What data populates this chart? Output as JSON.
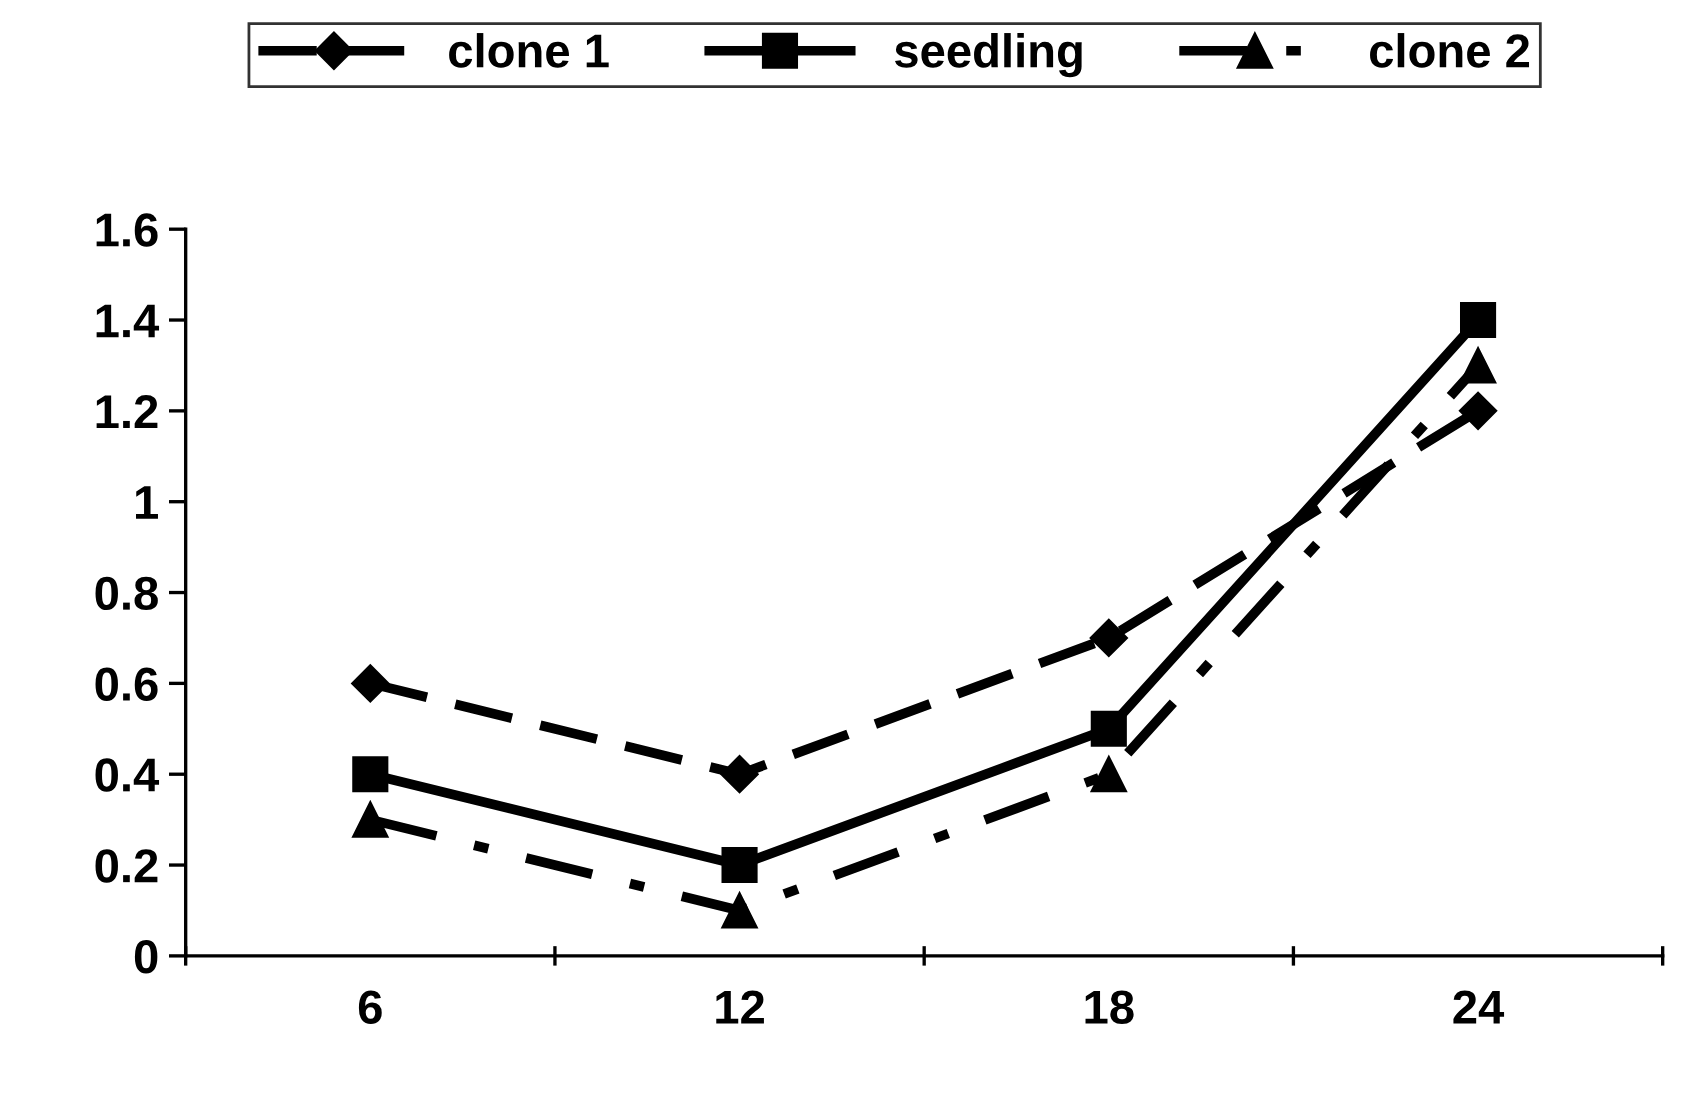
{
  "chart_data": {
    "type": "line",
    "categories": [
      "6",
      "12",
      "18",
      "24"
    ],
    "series": [
      {
        "name": "clone 1",
        "color": "#000000",
        "marker": "diamond",
        "line_style": "dashed",
        "values": [
          0.6,
          0.4,
          0.7,
          1.2
        ]
      },
      {
        "name": "seedling",
        "color": "#000000",
        "marker": "square",
        "line_style": "solid",
        "values": [
          0.4,
          0.2,
          0.5,
          1.4
        ]
      },
      {
        "name": "clone 2",
        "color": "#000000",
        "marker": "triangle",
        "line_style": "dashdot",
        "values": [
          0.3,
          0.1,
          0.4,
          1.3
        ]
      }
    ],
    "ylim": [
      0,
      1.6
    ],
    "yticks": [
      0,
      0.2,
      0.4,
      0.6,
      0.8,
      1,
      1.2,
      1.4,
      1.6
    ],
    "grid": false,
    "legend": "top"
  }
}
